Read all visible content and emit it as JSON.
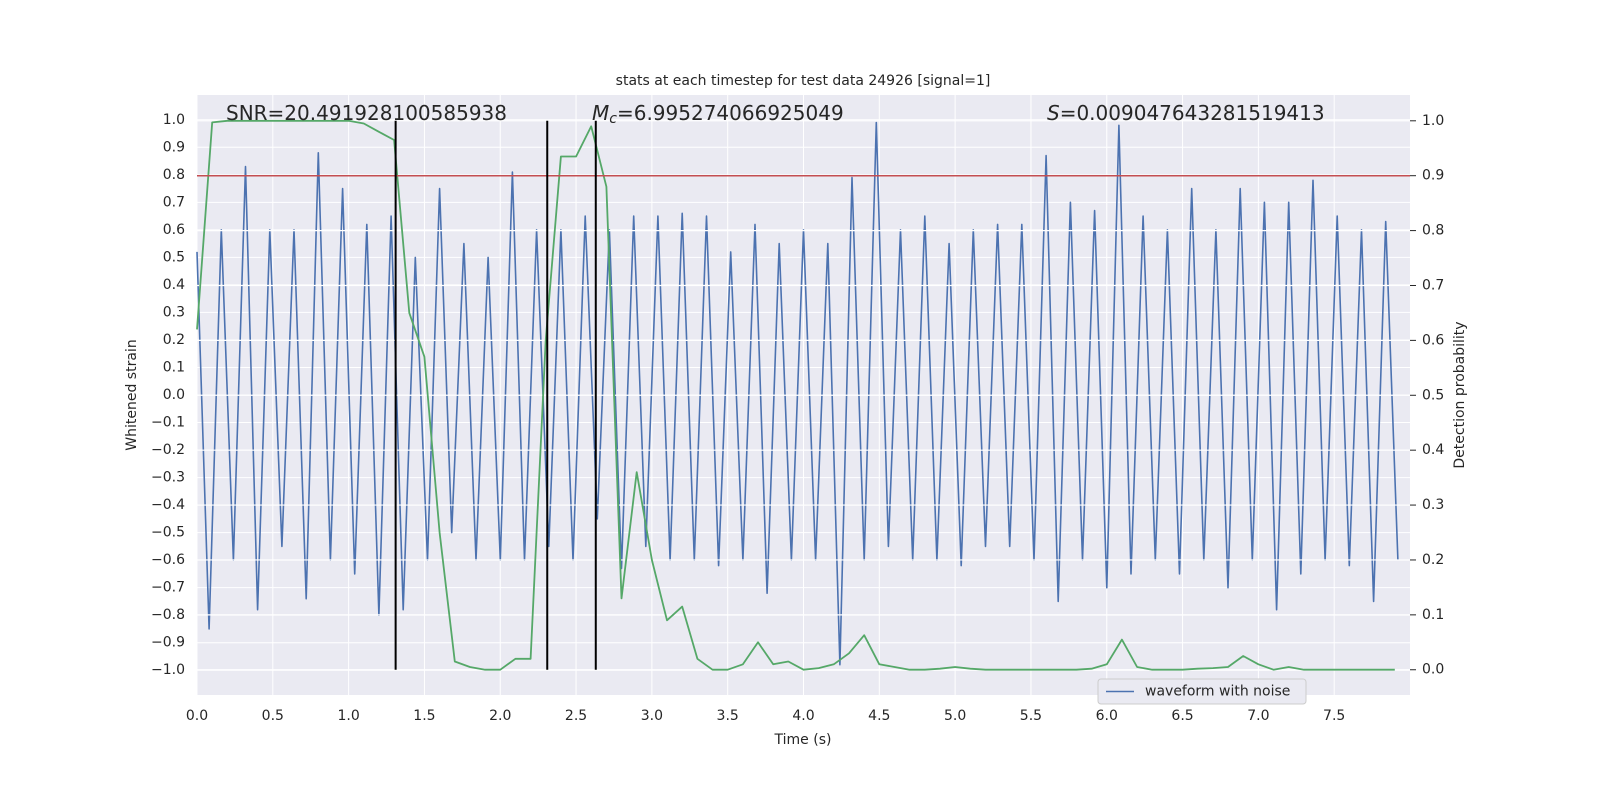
{
  "chart_data": {
    "type": "line",
    "title": "stats at each timestep for test data 24926 [signal=1]",
    "x_label": "Time (s)",
    "y_label": "Whitened strain",
    "y2_label": "Detection probability",
    "xlim": [
      0,
      8
    ],
    "ylim": [
      -1.09,
      1.09
    ],
    "y2lim": [
      -0.046,
      1.047
    ],
    "grid": true,
    "legend": "lower right",
    "xticks": [
      {
        "value": 0,
        "label": "0.0"
      },
      0.5,
      {
        "value": 1,
        "label": "1.0"
      },
      1.5,
      {
        "value": 2,
        "label": "2.0"
      },
      2.5,
      {
        "value": 3,
        "label": "3.0"
      },
      3.5,
      {
        "value": 4,
        "label": "4.0"
      },
      4.5,
      {
        "value": 5,
        "label": "5.0"
      },
      5.5,
      {
        "value": 6,
        "label": "6.0"
      },
      6.5,
      {
        "value": 7,
        "label": "7.0"
      },
      7.5
    ],
    "yticks": [
      {
        "value": -1,
        "label": "−1.0"
      },
      {
        "value": -0.9,
        "label": "−0.9"
      },
      {
        "value": -0.8,
        "label": "−0.8"
      },
      {
        "value": -0.7,
        "label": "−0.7"
      },
      {
        "value": -0.6,
        "label": "−0.6"
      },
      {
        "value": -0.5,
        "label": "−0.5"
      },
      {
        "value": -0.4,
        "label": "−0.4"
      },
      {
        "value": -0.3,
        "label": "−0.3"
      },
      {
        "value": -0.2,
        "label": "−0.2"
      },
      {
        "value": -0.1,
        "label": "−0.1"
      },
      {
        "value": 0,
        "label": "0.0"
      },
      0.1,
      0.2,
      0.3,
      0.4,
      0.5,
      0.6,
      0.7,
      0.8,
      0.9,
      {
        "value": 1,
        "label": "1.0"
      }
    ],
    "y2ticks": [
      {
        "value": 0,
        "label": "0.0"
      },
      0.1,
      0.2,
      0.3,
      0.4,
      0.5,
      0.6,
      0.7,
      0.8,
      0.9,
      {
        "value": 1,
        "label": "1.0"
      }
    ],
    "annotations": [
      {
        "text": "SNR=20.491928100585938"
      },
      {
        "symbol": "M",
        "sub": "c",
        "text": "=6.995274066925049"
      },
      {
        "symbol": "S",
        "text": "=0.009047643281519413"
      }
    ],
    "hlines": [
      {
        "value": 0.9,
        "axis": "y2",
        "color": "#c44e52"
      }
    ],
    "vlines": [
      {
        "x": 1.31,
        "ymin": 0,
        "ymax": 1,
        "axis": "y2",
        "color": "#000000"
      },
      {
        "x": 2.31,
        "ymin": 0,
        "ymax": 1,
        "axis": "y2",
        "color": "#000000"
      },
      {
        "x": 2.63,
        "ymin": 0,
        "ymax": 1,
        "axis": "y2",
        "color": "#000000"
      }
    ],
    "series": [
      {
        "name": "waveform with noise",
        "color": "#4c72b0",
        "x": [
          0,
          0.08,
          0.16,
          0.24,
          0.32,
          0.4,
          0.48,
          0.56,
          0.64,
          0.72,
          0.8,
          0.88,
          0.96,
          1.04,
          1.12,
          1.2,
          1.28,
          1.36,
          1.44,
          1.52,
          1.6,
          1.68,
          1.76,
          1.84,
          1.92,
          2,
          2.08,
          2.16,
          2.24,
          2.32,
          2.4,
          2.48,
          2.56,
          2.64,
          2.72,
          2.8,
          2.88,
          2.96,
          3.04,
          3.12,
          3.2,
          3.28,
          3.36,
          3.44,
          3.52,
          3.6,
          3.68,
          3.76,
          3.84,
          3.92,
          4,
          4.08,
          4.16,
          4.24,
          4.32,
          4.4,
          4.48,
          4.56,
          4.64,
          4.72,
          4.8,
          4.88,
          4.96,
          5.04,
          5.12,
          5.2,
          5.28,
          5.36,
          5.44,
          5.52,
          5.6,
          5.68,
          5.76,
          5.84,
          5.92,
          6,
          6.08,
          6.16,
          6.24,
          6.32,
          6.4,
          6.48,
          6.56,
          6.64,
          6.72,
          6.8,
          6.88,
          6.96,
          7.04,
          7.12,
          7.2,
          7.28,
          7.36,
          7.44,
          7.52,
          7.6,
          7.68,
          7.76,
          7.84,
          7.92
        ],
        "values": [
          0.52,
          -0.85,
          0.6,
          -0.6,
          0.83,
          -0.78,
          0.6,
          -0.55,
          0.6,
          -0.74,
          0.88,
          -0.6,
          0.75,
          -0.65,
          0.62,
          -0.8,
          0.65,
          -0.78,
          0.5,
          -0.6,
          0.75,
          -0.5,
          0.55,
          -0.6,
          0.5,
          -0.6,
          0.81,
          -0.6,
          0.6,
          -0.55,
          0.6,
          -0.6,
          0.65,
          -0.45,
          0.6,
          -0.63,
          0.65,
          -0.55,
          0.65,
          -0.6,
          0.66,
          -0.6,
          0.65,
          -0.62,
          0.52,
          -0.6,
          0.62,
          -0.72,
          0.55,
          -0.6,
          0.6,
          -0.6,
          0.55,
          -0.98,
          0.79,
          -0.6,
          0.99,
          -0.55,
          0.6,
          -0.6,
          0.65,
          -0.6,
          0.55,
          -0.62,
          0.6,
          -0.55,
          0.62,
          -0.55,
          0.62,
          -0.6,
          0.87,
          -0.75,
          0.7,
          -0.6,
          0.67,
          -0.7,
          0.98,
          -0.65,
          0.65,
          -0.6,
          0.6,
          -0.65,
          0.75,
          -0.6,
          0.6,
          -0.7,
          0.75,
          -0.6,
          0.7,
          -0.78,
          0.7,
          -0.65,
          0.78,
          -0.6,
          0.65,
          -0.62,
          0.6,
          -0.75,
          0.63,
          -0.6
        ]
      },
      {
        "color": "#55a868",
        "axis": "y2",
        "x": [
          0,
          0.1,
          0.2,
          0.3,
          0.4,
          0.5,
          0.6,
          0.7,
          0.8,
          0.9,
          1,
          1.1,
          1.2,
          1.3,
          1.4,
          1.5,
          1.6,
          1.7,
          1.8,
          1.9,
          2,
          2.1,
          2.2,
          2.3,
          2.4,
          2.5,
          2.6,
          2.7,
          2.8,
          2.9,
          3,
          3.1,
          3.2,
          3.3,
          3.4,
          3.5,
          3.6,
          3.7,
          3.8,
          3.9,
          4,
          4.1,
          4.2,
          4.3,
          4.4,
          4.5,
          4.6,
          4.7,
          4.8,
          4.9,
          5,
          5.1,
          5.2,
          5.3,
          5.4,
          5.5,
          5.6,
          5.7,
          5.8,
          5.9,
          6,
          6.1,
          6.2,
          6.3,
          6.4,
          6.5,
          6.6,
          6.7,
          6.8,
          6.9,
          7,
          7.1,
          7.2,
          7.3,
          7.4,
          7.5,
          7.6,
          7.7,
          7.8,
          7.9
        ],
        "values": [
          0.62,
          0.997,
          1,
          1,
          1,
          1,
          1,
          1,
          1,
          1,
          1,
          0.995,
          0.98,
          0.965,
          0.65,
          0.57,
          0.25,
          0.015,
          0.005,
          0,
          0,
          0.02,
          0.02,
          0.6,
          0.935,
          0.935,
          0.99,
          0.88,
          0.13,
          0.36,
          0.2,
          0.09,
          0.115,
          0.02,
          0,
          0,
          0.01,
          0.05,
          0.01,
          0.015,
          0,
          0.003,
          0.01,
          0.03,
          0.063,
          0.01,
          0.005,
          0,
          0,
          0.002,
          0.005,
          0.002,
          0,
          0,
          0,
          0,
          0,
          0,
          0,
          0.002,
          0.01,
          0.055,
          0.005,
          0,
          0,
          0,
          0.002,
          0.003,
          0.005,
          0.025,
          0.01,
          0,
          0.005,
          0,
          0,
          0,
          0,
          0,
          0,
          0
        ]
      }
    ]
  }
}
